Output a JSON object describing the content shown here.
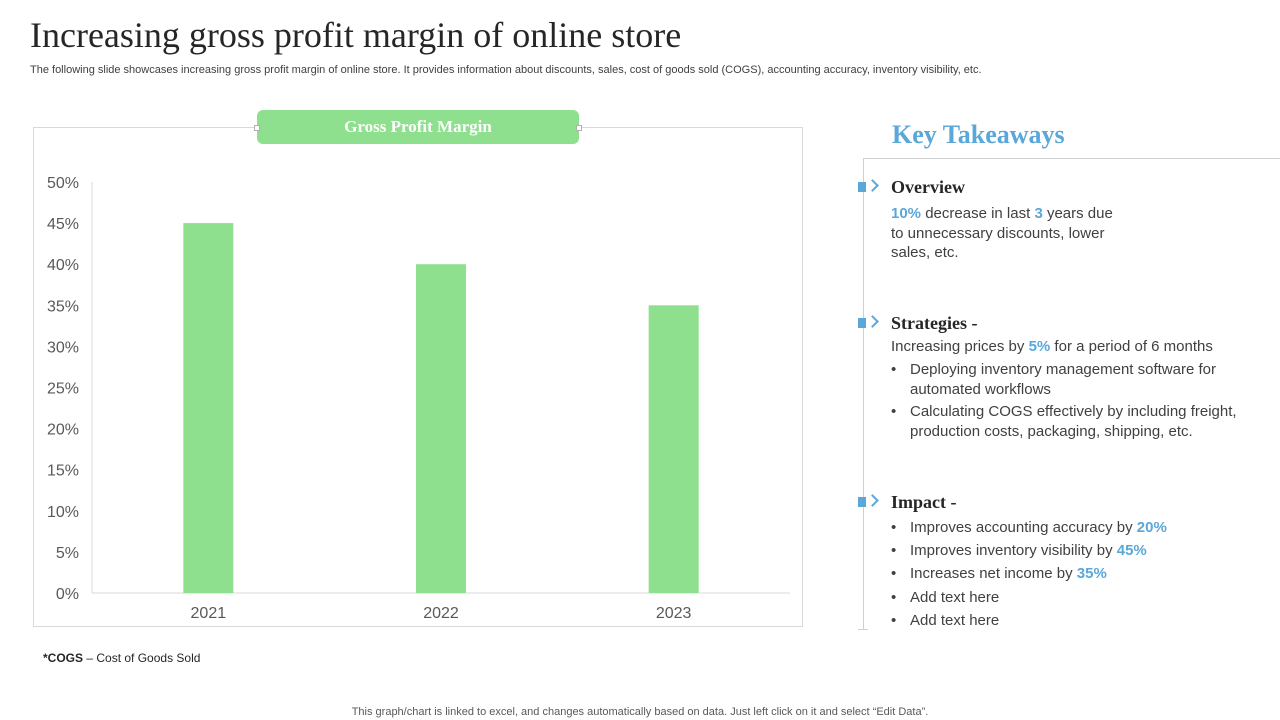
{
  "header": {
    "title": "Increasing gross profit margin of online store",
    "subtitle": "The following slide showcases increasing gross profit margin of online store. It provides information about discounts, sales, cost of goods sold (COGS), accounting accuracy, inventory visibility, etc."
  },
  "chart_data": {
    "type": "bar",
    "title": "Gross Profit Margin",
    "categories": [
      "2021",
      "2022",
      "2023"
    ],
    "values": [
      0.45,
      0.4,
      0.35
    ],
    "ylim": [
      0,
      0.5
    ],
    "yticks": [
      "0%",
      "5%",
      "10%",
      "15%",
      "20%",
      "25%",
      "30%",
      "35%",
      "40%",
      "45%",
      "50%"
    ],
    "xlabel": "",
    "ylabel": "",
    "grid": false,
    "bar_color": "#8ee08e"
  },
  "key_takeaways": {
    "title": "Key Takeaways",
    "overview": {
      "heading": "Overview",
      "pct": "10%",
      "text_a": " decrease in last ",
      "years": "3",
      "text_b": " years due",
      "line2": "to unnecessary  discounts, lower",
      "line3": "sales, etc."
    },
    "strategies": {
      "heading": "Strategies -",
      "intro_a": "Increasing prices by ",
      "intro_pct": "5%",
      "intro_b": " for a period of 6 months",
      "bullets": [
        "Deploying inventory  management software for automated workflows",
        "Calculating COGS effectively by including freight, production costs, packaging, shipping, etc."
      ]
    },
    "impact": {
      "heading": "Impact -",
      "items": [
        {
          "text": "Improves accounting accuracy by ",
          "value": "20%"
        },
        {
          "text": "Improves inventory visibility by ",
          "value": "45%"
        },
        {
          "text": "Increases net income by ",
          "value": "35%"
        },
        {
          "text": "Add text here",
          "value": ""
        },
        {
          "text": "Add text here",
          "value": ""
        }
      ]
    }
  },
  "notes": {
    "cogs_abbr": "*COGS",
    "cogs_def": " – Cost of Goods Sold",
    "footer": "This graph/chart is linked to excel,  and changes automatically based on data. Just left click on it and select “Edit Data”."
  },
  "colors": {
    "accent": "#5aa7d9",
    "bar": "#8ee08e"
  },
  "icons": [
    "section-marker-icon"
  ]
}
